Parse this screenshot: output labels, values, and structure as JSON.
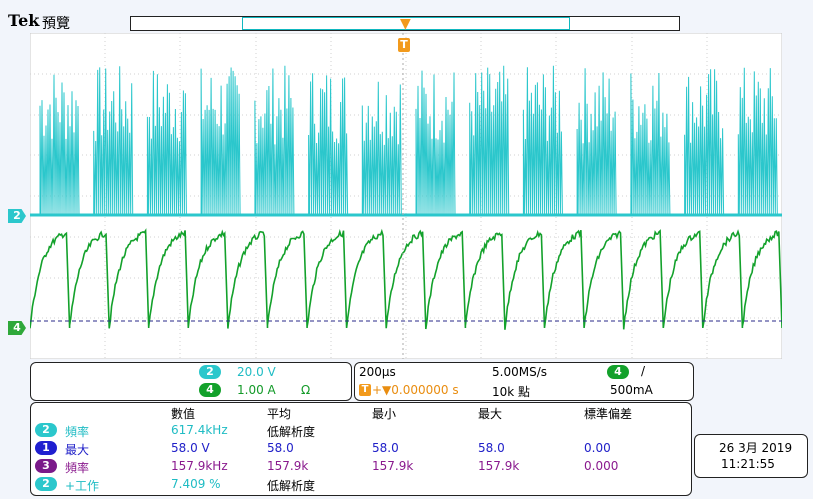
{
  "header": {
    "brand": "Tek",
    "mode": "預覽"
  },
  "trigger": {
    "marker": "T"
  },
  "channels": {
    "ch2_marker": "2",
    "ch4_marker": "4"
  },
  "channel_panel": {
    "ch2": {
      "num": "2",
      "scale": "20.0 V"
    },
    "ch4": {
      "num": "4",
      "scale": "1.00 A",
      "coupling": "Ω"
    }
  },
  "horizontal_panel": {
    "time_div": "200μs",
    "sample_rate": "5.00MS/s",
    "trig_source": "4",
    "trig_slope": "/",
    "trig_pos_marker": "T",
    "trig_pos": "+▼0.000000 s",
    "record_len": "10k 點",
    "trig_level": "500mA"
  },
  "measurements": {
    "headers": {
      "value": "數值",
      "mean": "平均",
      "min": "最小",
      "max": "最大",
      "std": "標準偏差"
    },
    "rows": [
      {
        "ch": "2",
        "name": "頻率",
        "value": "617.4kHz",
        "mean": "低解析度",
        "min": "",
        "max": "",
        "std": ""
      },
      {
        "ch": "1",
        "name": "最大",
        "value": "58.0 V",
        "mean": "58.0",
        "min": "58.0",
        "max": "58.0",
        "std": "0.00"
      },
      {
        "ch": "3",
        "name": "頻率",
        "value": "157.9kHz",
        "mean": "157.9k",
        "min": "157.9k",
        "max": "157.9k",
        "std": "0.000"
      },
      {
        "ch": "2",
        "name": "+工作",
        "value": "7.409 %",
        "mean": "低解析度",
        "min": "",
        "max": "",
        "std": ""
      }
    ]
  },
  "datetime": {
    "date": "26 3月 2019",
    "time": "11:21:55"
  },
  "colors": {
    "ch1": "#1f1fd0",
    "ch2": "#2bc7cc",
    "ch3": "#7a1a8a",
    "ch4": "#13a12b",
    "trigger": "#f29a1c"
  },
  "chart_data": {
    "type": "line",
    "grid": true,
    "series": [
      {
        "channel": "2",
        "shape": "bursts",
        "burst_count": 14
      },
      {
        "channel": "4",
        "shape": "sawtooth",
        "cycles": 19
      }
    ]
  }
}
